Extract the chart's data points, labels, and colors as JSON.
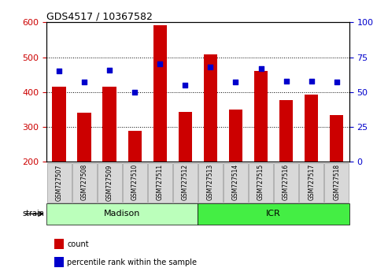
{
  "title": "GDS4517 / 10367582",
  "samples": [
    "GSM727507",
    "GSM727508",
    "GSM727509",
    "GSM727510",
    "GSM727511",
    "GSM727512",
    "GSM727513",
    "GSM727514",
    "GSM727515",
    "GSM727516",
    "GSM727517",
    "GSM727518"
  ],
  "counts": [
    415,
    340,
    415,
    288,
    592,
    343,
    507,
    350,
    460,
    377,
    392,
    333
  ],
  "percentiles": [
    65,
    57,
    66,
    50,
    70,
    55,
    68,
    57,
    67,
    58,
    58,
    57
  ],
  "ylim_left": [
    200,
    600
  ],
  "ylim_right": [
    0,
    100
  ],
  "yticks_left": [
    200,
    300,
    400,
    500,
    600
  ],
  "yticks_right": [
    0,
    25,
    50,
    75,
    100
  ],
  "bar_color": "#cc0000",
  "dot_color": "#0000cc",
  "groups": [
    {
      "label": "Madison",
      "start": 0,
      "end": 5,
      "color": "#bbffbb"
    },
    {
      "label": "ICR",
      "start": 6,
      "end": 11,
      "color": "#44ee44"
    }
  ],
  "group_label": "strain",
  "legend_items": [
    {
      "label": "count",
      "color": "#cc0000"
    },
    {
      "label": "percentile rank within the sample",
      "color": "#0000cc"
    }
  ],
  "background_color": "#ffffff",
  "tick_label_bg": "#d8d8d8"
}
